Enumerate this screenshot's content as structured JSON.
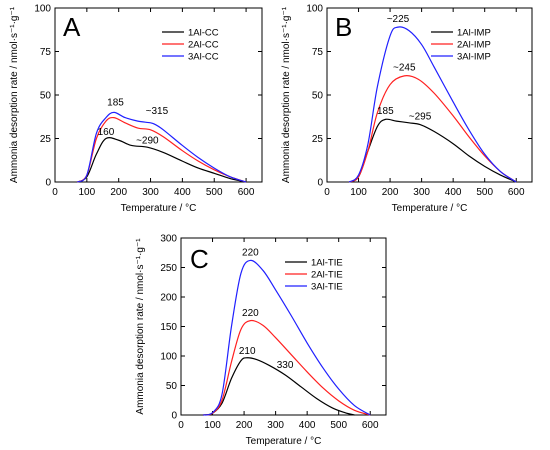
{
  "chart_data": [
    {
      "type": "line",
      "panel_label": "A",
      "xlabel": "Temperature / °C",
      "ylabel": "Ammonia desorption rate / nmol·s⁻¹·g⁻¹",
      "xlim": [
        0,
        650
      ],
      "ylim": [
        0,
        100
      ],
      "xticks": [
        0,
        100,
        200,
        300,
        400,
        500,
        600
      ],
      "yticks": [
        0,
        25,
        50,
        75,
        100
      ],
      "legend_position": "top-right",
      "series": [
        {
          "name": "1Al-CC",
          "color": "#000000",
          "x": [
            70,
            100,
            130,
            160,
            200,
            240,
            290,
            340,
            400,
            450,
            500,
            550,
            600
          ],
          "y": [
            0,
            3,
            16,
            25,
            24,
            21,
            20,
            17,
            12,
            8,
            5,
            2,
            0
          ]
        },
        {
          "name": "2Al-CC",
          "color": "#ff2020",
          "x": [
            70,
            100,
            130,
            160,
            185,
            220,
            260,
            300,
            340,
            400,
            450,
            500,
            550,
            600
          ],
          "y": [
            0,
            4,
            25,
            35,
            37,
            34,
            31,
            30,
            26,
            18,
            12,
            7,
            3,
            0
          ]
        },
        {
          "name": "3Al-CC",
          "color": "#2020ff",
          "x": [
            70,
            100,
            130,
            160,
            185,
            220,
            260,
            300,
            315,
            340,
            400,
            450,
            500,
            550,
            600
          ],
          "y": [
            0,
            4,
            28,
            37,
            40,
            37,
            35,
            34,
            33,
            30,
            21,
            14,
            8,
            3,
            0
          ]
        }
      ],
      "annotations": [
        "185",
        "~315",
        "160",
        "~290"
      ]
    },
    {
      "type": "line",
      "panel_label": "B",
      "xlabel": "Temperature / °C",
      "ylabel": "Ammonia desorption rate / nmol·s⁻¹·g⁻¹",
      "xlim": [
        0,
        650
      ],
      "ylim": [
        0,
        100
      ],
      "xticks": [
        0,
        100,
        200,
        300,
        400,
        500,
        600
      ],
      "yticks": [
        0,
        25,
        50,
        75,
        100
      ],
      "legend_position": "top-right",
      "series": [
        {
          "name": "1Al-IMP",
          "color": "#000000",
          "x": [
            70,
            100,
            130,
            160,
            185,
            220,
            260,
            295,
            340,
            400,
            450,
            500,
            550,
            600
          ],
          "y": [
            0,
            3,
            18,
            32,
            36,
            35,
            34,
            33,
            29,
            22,
            15,
            9,
            4,
            0
          ]
        },
        {
          "name": "2Al-IMP",
          "color": "#ff2020",
          "x": [
            70,
            100,
            130,
            160,
            200,
            245,
            290,
            340,
            400,
            450,
            500,
            550,
            600
          ],
          "y": [
            0,
            3,
            18,
            40,
            56,
            61,
            59,
            51,
            38,
            26,
            15,
            6,
            0
          ]
        },
        {
          "name": "3Al-IMP",
          "color": "#2020ff",
          "x": [
            70,
            100,
            130,
            160,
            200,
            225,
            260,
            300,
            340,
            400,
            450,
            500,
            550,
            600
          ],
          "y": [
            0,
            4,
            22,
            55,
            84,
            89,
            87,
            79,
            66,
            46,
            30,
            16,
            6,
            0
          ]
        }
      ],
      "annotations": [
        "~225",
        "~245",
        "185",
        "~295"
      ]
    },
    {
      "type": "line",
      "panel_label": "C",
      "xlabel": "Temperature / °C",
      "ylabel": "Ammonia desorption rate / nmol·s⁻¹·g⁻¹",
      "xlim": [
        0,
        650
      ],
      "ylim": [
        0,
        300
      ],
      "xticks": [
        0,
        100,
        200,
        300,
        400,
        500,
        600
      ],
      "yticks": [
        0,
        50,
        100,
        150,
        200,
        250,
        300
      ],
      "legend_position": "top-right",
      "series": [
        {
          "name": "1Al-TIE",
          "color": "#000000",
          "x": [
            70,
            100,
            130,
            160,
            190,
            210,
            240,
            280,
            330,
            380,
            430,
            480,
            520,
            550
          ],
          "y": [
            0,
            3,
            20,
            62,
            92,
            97,
            94,
            84,
            68,
            48,
            28,
            12,
            4,
            0
          ]
        },
        {
          "name": "2Al-TIE",
          "color": "#ff2020",
          "x": [
            70,
            100,
            130,
            160,
            190,
            220,
            260,
            300,
            350,
            400,
            450,
            500,
            550,
            600
          ],
          "y": [
            0,
            3,
            25,
            90,
            145,
            160,
            152,
            131,
            102,
            73,
            46,
            24,
            8,
            0
          ]
        },
        {
          "name": "3Al-TIE",
          "color": "#2020ff",
          "x": [
            70,
            100,
            130,
            160,
            190,
            220,
            260,
            300,
            350,
            400,
            450,
            500,
            550,
            600
          ],
          "y": [
            0,
            4,
            35,
            150,
            240,
            262,
            245,
            212,
            168,
            122,
            80,
            44,
            16,
            0
          ]
        }
      ],
      "annotations": [
        "220",
        "220",
        "210",
        "330"
      ]
    }
  ]
}
